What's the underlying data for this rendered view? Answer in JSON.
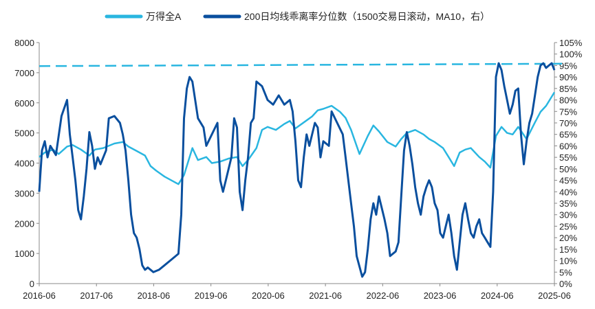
{
  "chart_data": {
    "type": "line",
    "title": "",
    "legend_position": "top",
    "x_ticks": [
      "2016-06",
      "2017-06",
      "2018-06",
      "2019-06",
      "2020-06",
      "2021-06",
      "2022-06",
      "2023-06",
      "2024-06",
      "2025-06"
    ],
    "x_range": [
      2016.5,
      2025.75
    ],
    "y_left": {
      "min": 0,
      "max": 8000,
      "ticks": [
        "0",
        "1000",
        "2000",
        "3000",
        "4000",
        "5000",
        "6000",
        "7000",
        "8000"
      ]
    },
    "y_right": {
      "min": 0,
      "max": 105,
      "ticks": [
        "0%",
        "5%",
        "10%",
        "15%",
        "20%",
        "25%",
        "30%",
        "35%",
        "40%",
        "45%",
        "50%",
        "55%",
        "60%",
        "65%",
        "70%",
        "75%",
        "80%",
        "85%",
        "90%",
        "95%",
        "100%",
        "105%"
      ]
    },
    "reference_line": {
      "axis": "right",
      "value": 95.5,
      "style": "dashed",
      "color": "#29b6e0"
    },
    "series": [
      {
        "name": "万得全A",
        "axis": "left",
        "color": "#29b6e0",
        "points": [
          [
            2016.5,
            4200
          ],
          [
            2016.6,
            4350
          ],
          [
            2016.75,
            4450
          ],
          [
            2016.85,
            4300
          ],
          [
            2017.0,
            4550
          ],
          [
            2017.1,
            4600
          ],
          [
            2017.25,
            4450
          ],
          [
            2017.4,
            4250
          ],
          [
            2017.5,
            4450
          ],
          [
            2017.65,
            4500
          ],
          [
            2017.85,
            4650
          ],
          [
            2018.0,
            4700
          ],
          [
            2018.1,
            4550
          ],
          [
            2018.25,
            4400
          ],
          [
            2018.4,
            4250
          ],
          [
            2018.5,
            3900
          ],
          [
            2018.6,
            3750
          ],
          [
            2018.75,
            3550
          ],
          [
            2018.9,
            3400
          ],
          [
            2019.0,
            3300
          ],
          [
            2019.1,
            3600
          ],
          [
            2019.25,
            4500
          ],
          [
            2019.35,
            4100
          ],
          [
            2019.5,
            4200
          ],
          [
            2019.6,
            4000
          ],
          [
            2019.75,
            4050
          ],
          [
            2019.9,
            4150
          ],
          [
            2020.05,
            4200
          ],
          [
            2020.15,
            3900
          ],
          [
            2020.25,
            4100
          ],
          [
            2020.4,
            4500
          ],
          [
            2020.5,
            5100
          ],
          [
            2020.6,
            5200
          ],
          [
            2020.75,
            5100
          ],
          [
            2020.9,
            5300
          ],
          [
            2021.0,
            5400
          ],
          [
            2021.1,
            5150
          ],
          [
            2021.25,
            5350
          ],
          [
            2021.4,
            5550
          ],
          [
            2021.5,
            5750
          ],
          [
            2021.6,
            5800
          ],
          [
            2021.75,
            5900
          ],
          [
            2021.9,
            5700
          ],
          [
            2022.0,
            5500
          ],
          [
            2022.1,
            5100
          ],
          [
            2022.25,
            4300
          ],
          [
            2022.4,
            4900
          ],
          [
            2022.5,
            5250
          ],
          [
            2022.6,
            5050
          ],
          [
            2022.75,
            4700
          ],
          [
            2022.9,
            4550
          ],
          [
            2023.0,
            4800
          ],
          [
            2023.1,
            5000
          ],
          [
            2023.25,
            5100
          ],
          [
            2023.4,
            4950
          ],
          [
            2023.5,
            4800
          ],
          [
            2023.6,
            4700
          ],
          [
            2023.75,
            4500
          ],
          [
            2023.85,
            4200
          ],
          [
            2023.95,
            3900
          ],
          [
            2024.05,
            4350
          ],
          [
            2024.15,
            4450
          ],
          [
            2024.25,
            4500
          ],
          [
            2024.4,
            4200
          ],
          [
            2024.5,
            4050
          ],
          [
            2024.6,
            3850
          ],
          [
            2024.7,
            4900
          ],
          [
            2024.8,
            5200
          ],
          [
            2024.9,
            5000
          ],
          [
            2025.0,
            4950
          ],
          [
            2025.1,
            5200
          ],
          [
            2025.25,
            4800
          ],
          [
            2025.4,
            5350
          ],
          [
            2025.5,
            5700
          ],
          [
            2025.6,
            5900
          ],
          [
            2025.75,
            6350
          ]
        ]
      },
      {
        "name": "200日均线乖离率分位数（1500交易日滚动，MA10，右）",
        "axis": "right",
        "color": "#0a4f9e",
        "points": [
          [
            2016.5,
            40
          ],
          [
            2016.55,
            58
          ],
          [
            2016.6,
            62
          ],
          [
            2016.65,
            55
          ],
          [
            2016.7,
            60
          ],
          [
            2016.8,
            56
          ],
          [
            2016.9,
            73
          ],
          [
            2017.0,
            80
          ],
          [
            2017.05,
            65
          ],
          [
            2017.1,
            55
          ],
          [
            2017.15,
            45
          ],
          [
            2017.2,
            32
          ],
          [
            2017.25,
            28
          ],
          [
            2017.3,
            38
          ],
          [
            2017.35,
            50
          ],
          [
            2017.4,
            66
          ],
          [
            2017.45,
            60
          ],
          [
            2017.5,
            50
          ],
          [
            2017.55,
            55
          ],
          [
            2017.6,
            52
          ],
          [
            2017.7,
            58
          ],
          [
            2017.75,
            72
          ],
          [
            2017.85,
            73
          ],
          [
            2017.95,
            70
          ],
          [
            2018.0,
            65
          ],
          [
            2018.05,
            58
          ],
          [
            2018.1,
            45
          ],
          [
            2018.15,
            30
          ],
          [
            2018.2,
            22
          ],
          [
            2018.25,
            20
          ],
          [
            2018.3,
            15
          ],
          [
            2018.35,
            8
          ],
          [
            2018.4,
            6
          ],
          [
            2018.45,
            7
          ],
          [
            2018.55,
            5
          ],
          [
            2018.65,
            6
          ],
          [
            2018.75,
            8
          ],
          [
            2018.85,
            10
          ],
          [
            2018.95,
            12
          ],
          [
            2019.0,
            13
          ],
          [
            2019.05,
            30
          ],
          [
            2019.1,
            72
          ],
          [
            2019.15,
            85
          ],
          [
            2019.2,
            90
          ],
          [
            2019.25,
            88
          ],
          [
            2019.35,
            72
          ],
          [
            2019.45,
            68
          ],
          [
            2019.5,
            60
          ],
          [
            2019.6,
            65
          ],
          [
            2019.7,
            70
          ],
          [
            2019.75,
            45
          ],
          [
            2019.8,
            40
          ],
          [
            2019.85,
            45
          ],
          [
            2019.95,
            55
          ],
          [
            2020.0,
            72
          ],
          [
            2020.05,
            68
          ],
          [
            2020.1,
            40
          ],
          [
            2020.15,
            32
          ],
          [
            2020.2,
            45
          ],
          [
            2020.25,
            55
          ],
          [
            2020.3,
            70
          ],
          [
            2020.35,
            72
          ],
          [
            2020.4,
            88
          ],
          [
            2020.5,
            86
          ],
          [
            2020.6,
            80
          ],
          [
            2020.7,
            78
          ],
          [
            2020.8,
            82
          ],
          [
            2020.9,
            78
          ],
          [
            2021.0,
            80
          ],
          [
            2021.05,
            75
          ],
          [
            2021.1,
            62
          ],
          [
            2021.15,
            45
          ],
          [
            2021.2,
            42
          ],
          [
            2021.25,
            55
          ],
          [
            2021.3,
            65
          ],
          [
            2021.35,
            60
          ],
          [
            2021.45,
            70
          ],
          [
            2021.5,
            68
          ],
          [
            2021.55,
            55
          ],
          [
            2021.6,
            62
          ],
          [
            2021.7,
            60
          ],
          [
            2021.75,
            75
          ],
          [
            2021.85,
            70
          ],
          [
            2021.95,
            65
          ],
          [
            2022.0,
            55
          ],
          [
            2022.05,
            45
          ],
          [
            2022.1,
            35
          ],
          [
            2022.15,
            25
          ],
          [
            2022.2,
            12
          ],
          [
            2022.3,
            3
          ],
          [
            2022.35,
            5
          ],
          [
            2022.4,
            15
          ],
          [
            2022.45,
            28
          ],
          [
            2022.5,
            35
          ],
          [
            2022.55,
            30
          ],
          [
            2022.6,
            38
          ],
          [
            2022.7,
            28
          ],
          [
            2022.75,
            22
          ],
          [
            2022.8,
            12
          ],
          [
            2022.9,
            14
          ],
          [
            2022.95,
            18
          ],
          [
            2023.0,
            38
          ],
          [
            2023.05,
            58
          ],
          [
            2023.1,
            66
          ],
          [
            2023.15,
            60
          ],
          [
            2023.2,
            52
          ],
          [
            2023.25,
            42
          ],
          [
            2023.3,
            35
          ],
          [
            2023.35,
            30
          ],
          [
            2023.4,
            38
          ],
          [
            2023.45,
            42
          ],
          [
            2023.5,
            45
          ],
          [
            2023.55,
            42
          ],
          [
            2023.6,
            35
          ],
          [
            2023.65,
            32
          ],
          [
            2023.7,
            22
          ],
          [
            2023.75,
            20
          ],
          [
            2023.8,
            25
          ],
          [
            2023.85,
            30
          ],
          [
            2023.9,
            22
          ],
          [
            2023.95,
            12
          ],
          [
            2024.0,
            6
          ],
          [
            2024.05,
            18
          ],
          [
            2024.1,
            30
          ],
          [
            2024.15,
            35
          ],
          [
            2024.2,
            28
          ],
          [
            2024.25,
            22
          ],
          [
            2024.3,
            20
          ],
          [
            2024.35,
            25
          ],
          [
            2024.4,
            28
          ],
          [
            2024.45,
            22
          ],
          [
            2024.5,
            20
          ],
          [
            2024.55,
            18
          ],
          [
            2024.6,
            16
          ],
          [
            2024.65,
            40
          ],
          [
            2024.7,
            90
          ],
          [
            2024.75,
            96
          ],
          [
            2024.8,
            93
          ],
          [
            2024.85,
            86
          ],
          [
            2024.9,
            80
          ],
          [
            2024.95,
            74
          ],
          [
            2025.0,
            78
          ],
          [
            2025.05,
            84
          ],
          [
            2025.1,
            85
          ],
          [
            2025.15,
            65
          ],
          [
            2025.2,
            52
          ],
          [
            2025.25,
            62
          ],
          [
            2025.3,
            70
          ],
          [
            2025.35,
            74
          ],
          [
            2025.4,
            82
          ],
          [
            2025.45,
            90
          ],
          [
            2025.5,
            95
          ],
          [
            2025.55,
            96
          ],
          [
            2025.6,
            94
          ],
          [
            2025.65,
            95
          ],
          [
            2025.7,
            96
          ],
          [
            2025.75,
            93
          ]
        ]
      }
    ]
  }
}
